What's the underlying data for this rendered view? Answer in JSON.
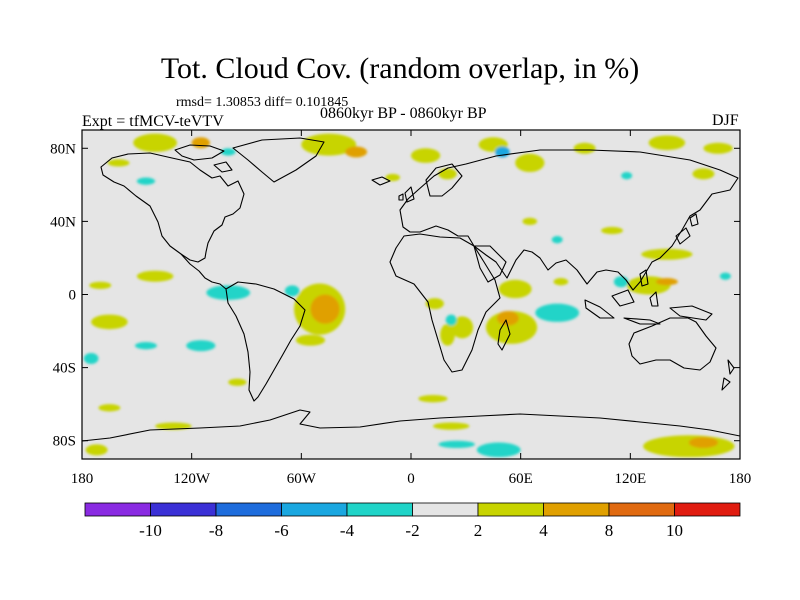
{
  "header": {
    "title": "Tot. Cloud Cov. (random overlap, in %)",
    "stats": "rmsd= 1.30853 diff= 0.101845",
    "experiment": "Expt = tfMCV-teVTV",
    "period": "0860kyr BP - 0860kyr BP",
    "season": "DJF"
  },
  "chart_data": {
    "type": "heatmap",
    "projection": "cylindrical-equidistant",
    "title": "Tot. Cloud Cov. (random overlap, in %)",
    "lon_range": [
      -180,
      180
    ],
    "lat_range": [
      -90,
      90
    ],
    "x_ticks": [
      {
        "lon": -180,
        "label": "180"
      },
      {
        "lon": -120,
        "label": "120W"
      },
      {
        "lon": -60,
        "label": "60W"
      },
      {
        "lon": 0,
        "label": "0"
      },
      {
        "lon": 60,
        "label": "60E"
      },
      {
        "lon": 120,
        "label": "120E"
      },
      {
        "lon": 180,
        "label": "180"
      }
    ],
    "y_ticks": [
      {
        "lat": 80,
        "label": "80N"
      },
      {
        "lat": 40,
        "label": "40N"
      },
      {
        "lat": 0,
        "label": "0"
      },
      {
        "lat": -40,
        "label": "40S"
      },
      {
        "lat": -80,
        "label": "80S"
      }
    ],
    "levels": [
      "-10",
      "-8",
      "-6",
      "-4",
      "-2",
      "2",
      "4",
      "8",
      "10"
    ],
    "colors": [
      "#8a2be2",
      "#3b30d6",
      "#1e6cdc",
      "#1aa7e0",
      "#20d4c8",
      "#e5e5e5",
      "#c8d400",
      "#e0a000",
      "#e06a10",
      "#e01c10"
    ],
    "anomaly_colors": {
      "pos_2_4": "#c8d400",
      "pos_4_8": "#e0a000",
      "pos_8_10": "#e06a10",
      "neg_4_2": "#20d4c8",
      "neg_6_4": "#1aa7e0",
      "neutral": "#e5e5e5"
    },
    "anomaly_regions": [
      {
        "lon": -140,
        "lat": 83,
        "rlon": 12,
        "rlat": 5,
        "cls": "pos_2_4"
      },
      {
        "lon": -115,
        "lat": 83,
        "rlon": 5,
        "rlat": 3,
        "cls": "pos_4_8"
      },
      {
        "lon": -160,
        "lat": 72,
        "rlon": 6,
        "rlat": 2,
        "cls": "pos_2_4"
      },
      {
        "lon": -145,
        "lat": 62,
        "rlon": 5,
        "rlat": 2,
        "cls": "neg_4_2"
      },
      {
        "lon": -100,
        "lat": 78,
        "rlon": 4,
        "rlat": 2,
        "cls": "neg_4_2"
      },
      {
        "lon": -45,
        "lat": 82,
        "rlon": 15,
        "rlat": 6,
        "cls": "pos_2_4"
      },
      {
        "lon": -30,
        "lat": 78,
        "rlon": 6,
        "rlat": 3,
        "cls": "pos_4_8"
      },
      {
        "lon": 8,
        "lat": 76,
        "rlon": 8,
        "rlat": 4,
        "cls": "pos_2_4"
      },
      {
        "lon": 20,
        "lat": 66,
        "rlon": 5,
        "rlat": 3,
        "cls": "pos_2_4"
      },
      {
        "lon": -10,
        "lat": 64,
        "rlon": 4,
        "rlat": 2,
        "cls": "pos_2_4"
      },
      {
        "lon": 45,
        "lat": 82,
        "rlon": 8,
        "rlat": 4,
        "cls": "pos_2_4"
      },
      {
        "lon": 50,
        "lat": 78,
        "rlon": 4,
        "rlat": 3,
        "cls": "neg_6_4"
      },
      {
        "lon": 65,
        "lat": 72,
        "rlon": 8,
        "rlat": 5,
        "cls": "pos_2_4"
      },
      {
        "lon": 95,
        "lat": 80,
        "rlon": 6,
        "rlat": 3,
        "cls": "pos_2_4"
      },
      {
        "lon": 140,
        "lat": 83,
        "rlon": 10,
        "rlat": 4,
        "cls": "pos_2_4"
      },
      {
        "lon": 168,
        "lat": 80,
        "rlon": 8,
        "rlat": 3,
        "cls": "pos_2_4"
      },
      {
        "lon": 160,
        "lat": 66,
        "rlon": 6,
        "rlat": 3,
        "cls": "pos_2_4"
      },
      {
        "lon": 118,
        "lat": 65,
        "rlon": 3,
        "rlat": 2,
        "cls": "neg_4_2"
      },
      {
        "lon": 65,
        "lat": 40,
        "rlon": 4,
        "rlat": 2,
        "cls": "pos_2_4"
      },
      {
        "lon": 110,
        "lat": 35,
        "rlon": 6,
        "rlat": 2,
        "cls": "pos_2_4"
      },
      {
        "lon": 80,
        "lat": 30,
        "rlon": 3,
        "rlat": 2,
        "cls": "neg_4_2"
      },
      {
        "lon": 140,
        "lat": 22,
        "rlon": 14,
        "rlat": 3,
        "cls": "pos_2_4"
      },
      {
        "lon": 172,
        "lat": 10,
        "rlon": 3,
        "rlat": 2,
        "cls": "neg_4_2"
      },
      {
        "lon": 130,
        "lat": 5,
        "rlon": 12,
        "rlat": 5,
        "cls": "pos_2_4"
      },
      {
        "lon": 140,
        "lat": 7,
        "rlon": 6,
        "rlat": 2,
        "cls": "pos_4_8"
      },
      {
        "lon": 115,
        "lat": 7,
        "rlon": 4,
        "rlat": 3,
        "cls": "neg_4_2"
      },
      {
        "lon": 82,
        "lat": 7,
        "rlon": 4,
        "rlat": 2,
        "cls": "pos_2_4"
      },
      {
        "lon": 57,
        "lat": 3,
        "rlon": 9,
        "rlat": 5,
        "cls": "pos_2_4"
      },
      {
        "lon": 80,
        "lat": -10,
        "rlon": 12,
        "rlat": 5,
        "cls": "neg_4_2"
      },
      {
        "lon": 55,
        "lat": -18,
        "rlon": 14,
        "rlat": 9,
        "cls": "pos_2_4"
      },
      {
        "lon": 53,
        "lat": -13,
        "rlon": 6,
        "rlat": 4,
        "cls": "pos_4_8"
      },
      {
        "lon": 28,
        "lat": -18,
        "rlon": 6,
        "rlat": 6,
        "cls": "pos_2_4"
      },
      {
        "lon": 20,
        "lat": -22,
        "rlon": 4,
        "rlat": 6,
        "cls": "pos_2_4"
      },
      {
        "lon": 22,
        "lat": -14,
        "rlon": 3,
        "rlat": 3,
        "cls": "neg_4_2"
      },
      {
        "lon": 13,
        "lat": -5,
        "rlon": 5,
        "rlat": 3,
        "cls": "pos_2_4"
      },
      {
        "lon": -50,
        "lat": -8,
        "rlon": 14,
        "rlat": 14,
        "cls": "pos_2_4"
      },
      {
        "lon": -47,
        "lat": -8,
        "rlon": 8,
        "rlat": 8,
        "cls": "pos_4_8"
      },
      {
        "lon": -65,
        "lat": 2,
        "rlon": 4,
        "rlat": 3,
        "cls": "neg_4_2"
      },
      {
        "lon": -55,
        "lat": -25,
        "rlon": 8,
        "rlat": 3,
        "cls": "pos_2_4"
      },
      {
        "lon": -100,
        "lat": 1,
        "rlon": 12,
        "rlat": 4,
        "cls": "neg_4_2"
      },
      {
        "lon": -140,
        "lat": 10,
        "rlon": 10,
        "rlat": 3,
        "cls": "pos_2_4"
      },
      {
        "lon": -170,
        "lat": 5,
        "rlon": 6,
        "rlat": 2,
        "cls": "pos_2_4"
      },
      {
        "lon": -165,
        "lat": -15,
        "rlon": 10,
        "rlat": 4,
        "cls": "pos_2_4"
      },
      {
        "lon": -145,
        "lat": -28,
        "rlon": 6,
        "rlat": 2,
        "cls": "neg_4_2"
      },
      {
        "lon": -115,
        "lat": -28,
        "rlon": 8,
        "rlat": 3,
        "cls": "neg_4_2"
      },
      {
        "lon": -165,
        "lat": -62,
        "rlon": 6,
        "rlat": 2,
        "cls": "pos_2_4"
      },
      {
        "lon": -95,
        "lat": -48,
        "rlon": 5,
        "rlat": 2,
        "cls": "pos_2_4"
      },
      {
        "lon": -130,
        "lat": -72,
        "rlon": 10,
        "rlat": 2,
        "cls": "pos_2_4"
      },
      {
        "lon": 12,
        "lat": -57,
        "rlon": 8,
        "rlat": 2,
        "cls": "pos_2_4"
      },
      {
        "lon": 22,
        "lat": -72,
        "rlon": 10,
        "rlat": 2,
        "cls": "pos_2_4"
      },
      {
        "lon": 48,
        "lat": -85,
        "rlon": 12,
        "rlat": 4,
        "cls": "neg_4_2"
      },
      {
        "lon": 25,
        "lat": -82,
        "rlon": 10,
        "rlat": 2,
        "cls": "neg_4_2"
      },
      {
        "lon": 152,
        "lat": -83,
        "rlon": 25,
        "rlat": 6,
        "cls": "pos_2_4"
      },
      {
        "lon": 160,
        "lat": -81,
        "rlon": 8,
        "rlat": 3,
        "cls": "pos_4_8"
      },
      {
        "lon": -172,
        "lat": -85,
        "rlon": 6,
        "rlat": 3,
        "cls": "pos_2_4"
      },
      {
        "lon": -175,
        "lat": -35,
        "rlon": 4,
        "rlat": 3,
        "cls": "neg_4_2"
      }
    ]
  }
}
